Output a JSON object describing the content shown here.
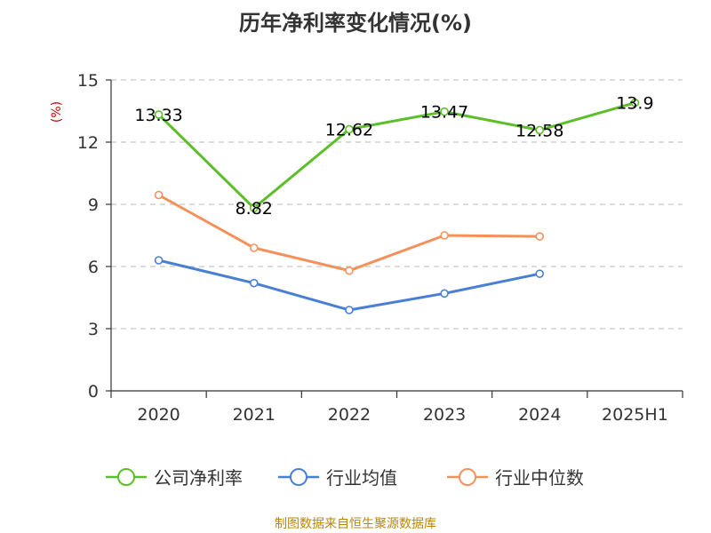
{
  "chart_data": {
    "type": "line",
    "title": "历年净利率变化情况(%)",
    "ylabel": "(%)",
    "xlabel": "",
    "categories": [
      "2020",
      "2021",
      "2022",
      "2023",
      "2024",
      "2025H1"
    ],
    "ylim": [
      0,
      15
    ],
    "yticks": [
      0,
      3,
      6,
      9,
      12,
      15
    ],
    "grid": true,
    "legend_position": "bottom",
    "series": [
      {
        "name": "公司净利率",
        "color": "#5cbf2a",
        "values": [
          13.33,
          8.82,
          12.62,
          13.47,
          12.58,
          13.9
        ],
        "value_labels": [
          "13.33",
          "8.82",
          "12.62",
          "13.47",
          "12.58",
          "13.9"
        ],
        "show_labels": true
      },
      {
        "name": "行业均值",
        "color": "#4a7fd6",
        "values": [
          6.3,
          5.2,
          3.9,
          4.7,
          5.65,
          null
        ],
        "show_labels": false
      },
      {
        "name": "行业中位数",
        "color": "#f4915a",
        "values": [
          9.45,
          6.9,
          5.8,
          7.5,
          7.45,
          null
        ],
        "show_labels": false
      }
    ],
    "source": "制图数据来自恒生聚源数据库"
  }
}
